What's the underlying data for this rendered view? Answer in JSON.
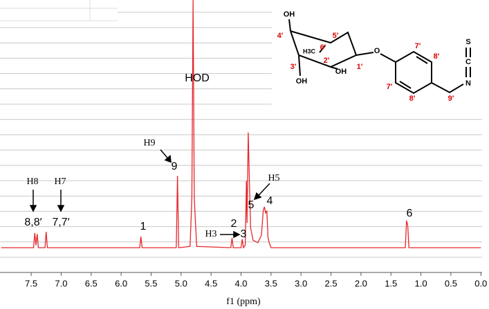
{
  "chart_data": {
    "type": "line",
    "x_label": "f1 (ppm)",
    "xlim": [
      8.02,
      -0.02
    ],
    "ylim": [
      -10,
      100
    ],
    "grid": true,
    "xticks": [
      7.5,
      {
        "value": 7,
        "label": "7.0"
      },
      6.5,
      {
        "value": 6,
        "label": "6.0"
      },
      5.5,
      {
        "value": 5,
        "label": "5.0"
      },
      4.5,
      {
        "value": 4,
        "label": "4.0"
      },
      3.5,
      {
        "value": 3,
        "label": "3.0"
      },
      2.5,
      {
        "value": 2,
        "label": "2.0"
      },
      1.5,
      {
        "value": 1,
        "label": "1.0"
      },
      0.5,
      {
        "value": 0,
        "label": "0.0"
      }
    ],
    "series": [
      {
        "color": "#e5262b",
        "x": [
          8.0,
          7.46,
          7.44,
          7.42,
          7.4,
          7.38,
          7.27,
          7.25,
          7.23,
          5.69,
          5.67,
          5.65,
          5.08,
          5.06,
          5.04,
          4.85,
          4.82,
          4.8,
          4.78,
          4.74,
          4.17,
          4.15,
          4.13,
          4.0,
          3.98,
          3.96,
          3.93,
          3.91,
          3.9,
          3.88,
          3.86,
          3.84,
          3.8,
          3.72,
          3.66,
          3.63,
          3.61,
          3.59,
          3.57,
          3.55,
          3.53,
          3.5,
          1.26,
          1.24,
          1.22,
          1.2,
          0.0
        ],
        "values": [
          0,
          0,
          5.9,
          1,
          5.5,
          0,
          0,
          6.4,
          0,
          0,
          4.5,
          0,
          0,
          29,
          0,
          0.5,
          20,
          100,
          20,
          0.5,
          0,
          3.9,
          0,
          0,
          3.4,
          0,
          1,
          27,
          10,
          46.5,
          26,
          8,
          3,
          2,
          5,
          15,
          16.5,
          14,
          15,
          4,
          2,
          0,
          0,
          10.9,
          9,
          0,
          0
        ]
      }
    ],
    "annotations": [
      "HOD",
      "H9",
      "9",
      "H8",
      "8,8′",
      "H7",
      "7,7′",
      "1",
      "2",
      "H3",
      "3",
      "H5",
      "5",
      "4",
      "6"
    ]
  },
  "structure": {
    "labels": [
      "OH",
      "4'",
      "5'",
      "H3C",
      "6'",
      "2'",
      "3'",
      "1'",
      "OH",
      "OH",
      "O",
      "7'",
      "8'",
      "7'",
      "8'",
      "9'",
      "S",
      "C",
      "N"
    ]
  }
}
